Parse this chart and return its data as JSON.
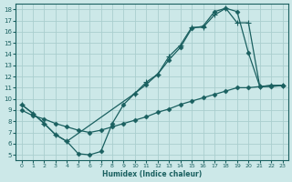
{
  "xlabel": "Humidex (Indice chaleur)",
  "bg_color": "#cce8e8",
  "grid_color": "#aacece",
  "line_color": "#1a6060",
  "xlim": [
    -0.5,
    23.5
  ],
  "ylim": [
    4.5,
    18.5
  ],
  "xticks": [
    0,
    1,
    2,
    3,
    4,
    5,
    6,
    7,
    8,
    9,
    10,
    11,
    12,
    13,
    14,
    15,
    16,
    17,
    18,
    19,
    20,
    21,
    22,
    23
  ],
  "yticks": [
    5,
    6,
    7,
    8,
    9,
    10,
    11,
    12,
    13,
    14,
    15,
    16,
    17,
    18
  ],
  "curve1_x": [
    0,
    1,
    2,
    3,
    4,
    5,
    6,
    7,
    8,
    9,
    10,
    11,
    12,
    13,
    14,
    15,
    16,
    17,
    18,
    19,
    20,
    21,
    22,
    23
  ],
  "curve1_y": [
    9.5,
    8.7,
    7.8,
    6.8,
    6.2,
    5.1,
    5.0,
    5.3,
    7.8,
    9.5,
    10.5,
    11.3,
    12.2,
    13.5,
    14.6,
    16.3,
    16.5,
    17.8,
    18.1,
    17.8,
    14.1,
    11.1,
    11.2,
    11.2
  ],
  "curve1_marker": "D",
  "curve2_x": [
    0,
    1,
    2,
    3,
    4,
    10,
    11,
    12,
    13,
    14,
    15,
    16,
    17,
    18,
    19,
    20,
    21,
    22,
    23
  ],
  "curve2_y": [
    9.5,
    8.7,
    7.8,
    6.8,
    6.2,
    10.5,
    11.5,
    12.2,
    13.8,
    14.8,
    16.4,
    16.4,
    17.5,
    18.1,
    16.8,
    16.8,
    11.1,
    11.2,
    11.2
  ],
  "curve2_marker": "+",
  "curve3_x": [
    0,
    1,
    2,
    3,
    4,
    5,
    6,
    7,
    8,
    9,
    10,
    11,
    12,
    13,
    14,
    15,
    16,
    17,
    18,
    19,
    20,
    21,
    22,
    23
  ],
  "curve3_y": [
    9.0,
    8.5,
    8.2,
    7.8,
    7.5,
    7.2,
    7.0,
    7.2,
    7.5,
    7.8,
    8.1,
    8.4,
    8.8,
    9.1,
    9.5,
    9.8,
    10.1,
    10.4,
    10.7,
    11.0,
    11.0,
    11.1,
    11.1,
    11.2
  ],
  "curve3_marker": "D"
}
